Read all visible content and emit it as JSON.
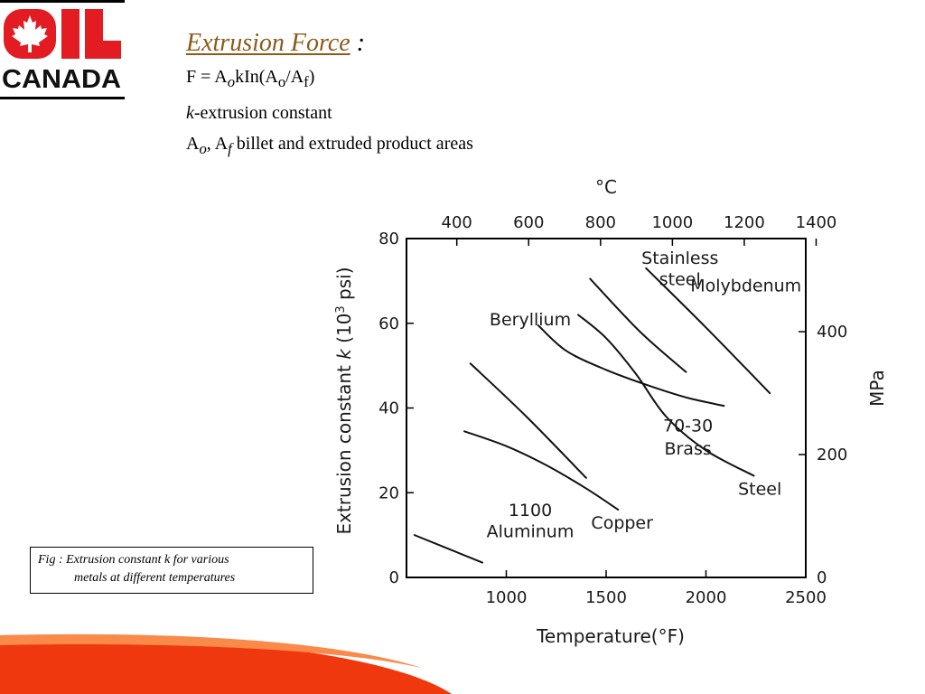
{
  "logo": {
    "line1": "OIL",
    "line2": "CANADA",
    "brand_color": "#e31b23",
    "icon": "maple-leaf-icon"
  },
  "formula": {
    "title": "Extrusion Force",
    "title_suffix": " :",
    "eq_a": "F = A",
    "eq_o": "o",
    "eq_b": "kIn(A",
    "eq_o2": "o",
    "eq_c": "/A",
    "eq_f": "f",
    "eq_d": ")",
    "k_symbol": "k",
    "k_text": "-extrusion constant",
    "areas_a": "A",
    "areas_o": "o",
    "areas_b": ", A",
    "areas_f": "f",
    "areas_text": " billet and extruded product areas"
  },
  "caption": {
    "line1": "Fig : Extrusion constant k for various",
    "line2": "metals at different temperatures"
  },
  "chart_data": {
    "type": "line",
    "xlabel": "Temperature(°F)",
    "xlim": [
      500,
      2500
    ],
    "x_ticks": [
      1000,
      1500,
      2000,
      2500
    ],
    "x2label": "°C",
    "x2_ticks": [
      400,
      600,
      800,
      1000,
      1200,
      1400
    ],
    "ylabel_a": "Extrusion constant ",
    "ylabel_k": "k",
    "ylabel_b": " (10",
    "ylabel_sup": "3",
    "ylabel_c": " psi)",
    "ylim": [
      0,
      80
    ],
    "y_ticks": [
      0,
      20,
      40,
      60,
      80
    ],
    "y2label": "MPa",
    "y2_ticks": [
      0,
      200,
      400
    ],
    "grid": false,
    "series": [
      {
        "name": "1100 Aluminum",
        "x": [
          540,
          880
        ],
        "y": [
          10,
          3.5
        ]
      },
      {
        "name": "Copper",
        "x": [
          790,
          1000,
          1200,
          1400,
          1560
        ],
        "y": [
          34.5,
          31,
          26.5,
          21,
          16
        ]
      },
      {
        "name": "70-30 Brass",
        "x": [
          820,
          1100,
          1400
        ],
        "y": [
          50.5,
          38,
          23.5
        ]
      },
      {
        "name": "Beryllium",
        "x": [
          1160,
          1300,
          1500,
          1700,
          1900,
          2090
        ],
        "y": [
          59.5,
          53.5,
          49,
          45.5,
          42.5,
          40.5
        ]
      },
      {
        "name": "Steel",
        "x": [
          1360,
          1500,
          1650,
          1800,
          2000,
          2240
        ],
        "y": [
          62,
          56.5,
          48,
          38,
          30,
          24
        ]
      },
      {
        "name": "Stainless steel",
        "x": [
          1420,
          1670,
          1900
        ],
        "y": [
          70.5,
          58,
          48.5
        ]
      },
      {
        "name": "Molybdenum",
        "x": [
          1700,
          2000,
          2320
        ],
        "y": [
          73,
          59,
          43.5
        ]
      }
    ],
    "labels": [
      {
        "text": "1100",
        "x": 1120,
        "y": 14.5
      },
      {
        "text": "Aluminum",
        "x": 1120,
        "y": 9.5
      },
      {
        "text": "Copper",
        "x": 1580,
        "y": 11.5
      },
      {
        "text": "70-30",
        "x": 1910,
        "y": 34.5
      },
      {
        "text": "Brass",
        "x": 1910,
        "y": 29
      },
      {
        "text": "Beryllium",
        "x": 1120,
        "y": 59.5
      },
      {
        "text": "Steel",
        "x": 2270,
        "y": 19.5
      },
      {
        "text": "Stainless",
        "x": 1870,
        "y": 74
      },
      {
        "text": "steel",
        "x": 1870,
        "y": 69
      },
      {
        "text": "Molybdenum",
        "x": 2200,
        "y": 67.5
      }
    ]
  }
}
